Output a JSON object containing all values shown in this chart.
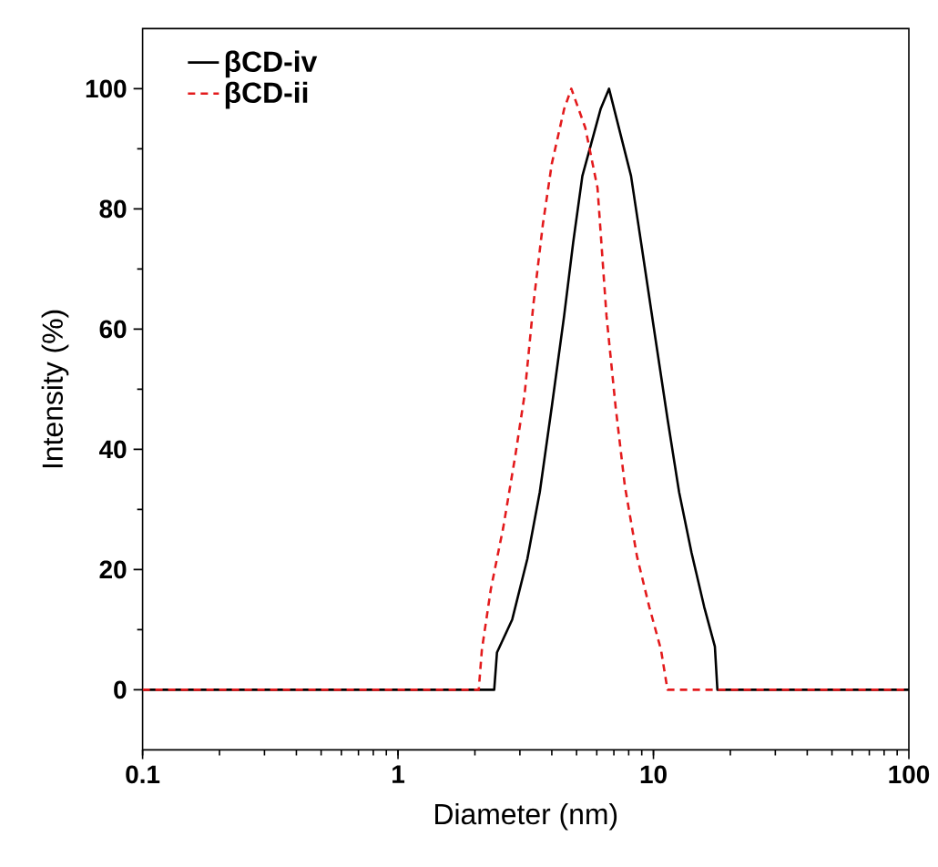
{
  "chart_data": {
    "type": "line",
    "xlabel": "Diameter (nm)",
    "ylabel": "Intensity (%)",
    "log": "x",
    "xlim": [
      0.1,
      100
    ],
    "xticks": [
      0.1,
      1,
      10,
      100
    ],
    "ylim": [
      -10,
      110
    ],
    "yticks": [
      0,
      20,
      40,
      60,
      80,
      100
    ],
    "legend": "top left",
    "grid": false,
    "series": [
      {
        "name": "βCD-iv",
        "color": "#000000",
        "line_style": "solid",
        "x": [
          0.1,
          2.38,
          2.44,
          2.8,
          3.21,
          3.59,
          4.0,
          4.47,
          4.85,
          5.27,
          6.21,
          6.7,
          8.17,
          9.1,
          10.2,
          11.35,
          12.6,
          14.1,
          15.8,
          17.4,
          17.8,
          100
        ],
        "values": [
          0,
          0,
          6.2,
          11.7,
          21.8,
          32.9,
          47.1,
          62.2,
          74.4,
          85.5,
          96.6,
          100,
          85.5,
          72.3,
          58.2,
          45.1,
          32.9,
          22.8,
          13.8,
          7.2,
          0,
          0
        ]
      },
      {
        "name": "βCD-ii",
        "color": "#e31a1c",
        "line_style": "dashed",
        "x": [
          0.1,
          2.07,
          2.13,
          2.31,
          2.58,
          2.88,
          3.13,
          3.39,
          3.69,
          4.0,
          4.47,
          4.77,
          5.41,
          6.04,
          6.55,
          7.11,
          7.73,
          8.62,
          9.63,
          10.7,
          11.35,
          17.8,
          100
        ],
        "values": [
          0,
          0,
          6.7,
          16.8,
          26.9,
          39,
          49.1,
          64.2,
          77.4,
          87.5,
          96.6,
          100,
          93.5,
          83.5,
          62.2,
          47.1,
          33.9,
          22.2,
          13.8,
          6.7,
          0,
          0,
          0
        ]
      }
    ]
  }
}
